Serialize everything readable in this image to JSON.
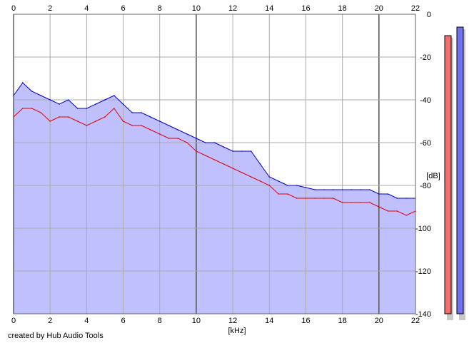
{
  "chart_data": {
    "type": "area",
    "xlabel": "[kHz]",
    "ylabel": "[dB]",
    "xlim": [
      0,
      22
    ],
    "ylim": [
      -140,
      0
    ],
    "x_ticks": [
      0,
      2,
      4,
      6,
      8,
      10,
      12,
      14,
      16,
      18,
      20,
      22
    ],
    "y_ticks": [
      0,
      -20,
      -40,
      -60,
      -80,
      -100,
      -120,
      -140
    ],
    "y_tick_labels": [
      "0",
      "-20",
      "-40",
      "-60",
      "-80",
      "-100",
      "-120",
      "-140"
    ],
    "grid": true,
    "x_axis_repeated_top": true,
    "series": [
      {
        "color": "#0000cc",
        "x": [
          0,
          0.5,
          1,
          1.5,
          2,
          2.5,
          3,
          3.5,
          4,
          4.5,
          5,
          5.5,
          6,
          6.5,
          7,
          7.5,
          8,
          8.5,
          9,
          9.5,
          10,
          10.5,
          11,
          11.5,
          12,
          12.5,
          13,
          13.5,
          14,
          14.5,
          15,
          15.5,
          16,
          16.5,
          17,
          17.5,
          18,
          18.5,
          19,
          19.5,
          20,
          20.5,
          21,
          21.5,
          22
        ],
        "values": [
          -38,
          -32,
          -36,
          -38,
          -40,
          -42,
          -40,
          -44,
          -44,
          -42,
          -40,
          -38,
          -42,
          -46,
          -46,
          -48,
          -50,
          -52,
          -54,
          -56,
          -58,
          -60,
          -60,
          -62,
          -64,
          -64,
          -64,
          -70,
          -76,
          -78,
          -80,
          -80,
          -81,
          -82,
          -82,
          -82,
          -82,
          -82,
          -82,
          -82,
          -84,
          -84,
          -86,
          -86,
          -86
        ]
      },
      {
        "color": "#dd0000",
        "x": [
          0,
          0.5,
          1,
          1.5,
          2,
          2.5,
          3,
          3.5,
          4,
          4.5,
          5,
          5.5,
          6,
          6.5,
          7,
          7.5,
          8,
          8.5,
          9,
          9.5,
          10,
          10.5,
          11,
          11.5,
          12,
          12.5,
          13,
          13.5,
          14,
          14.5,
          15,
          15.5,
          16,
          16.5,
          17,
          17.5,
          18,
          18.5,
          19,
          19.5,
          20,
          20.5,
          21,
          21.5,
          22
        ],
        "values": [
          -48,
          -44,
          -44,
          -46,
          -50,
          -48,
          -48,
          -50,
          -52,
          -50,
          -48,
          -44,
          -50,
          -52,
          -52,
          -54,
          -56,
          -58,
          -58,
          -60,
          -64,
          -66,
          -68,
          -70,
          -72,
          -74,
          -76,
          -78,
          -80,
          -84,
          -84,
          -86,
          -86,
          -86,
          -86,
          -86,
          -88,
          -88,
          -88,
          -88,
          -90,
          -92,
          -92,
          -94,
          -92
        ]
      }
    ],
    "level_meters": [
      {
        "color": "#f07070",
        "value_db": -10
      },
      {
        "color": "#7070f0",
        "value_db": -6
      }
    ],
    "fill_color": "#c0c0ff"
  },
  "footer": {
    "credit": "created by Hub Audio Tools"
  }
}
